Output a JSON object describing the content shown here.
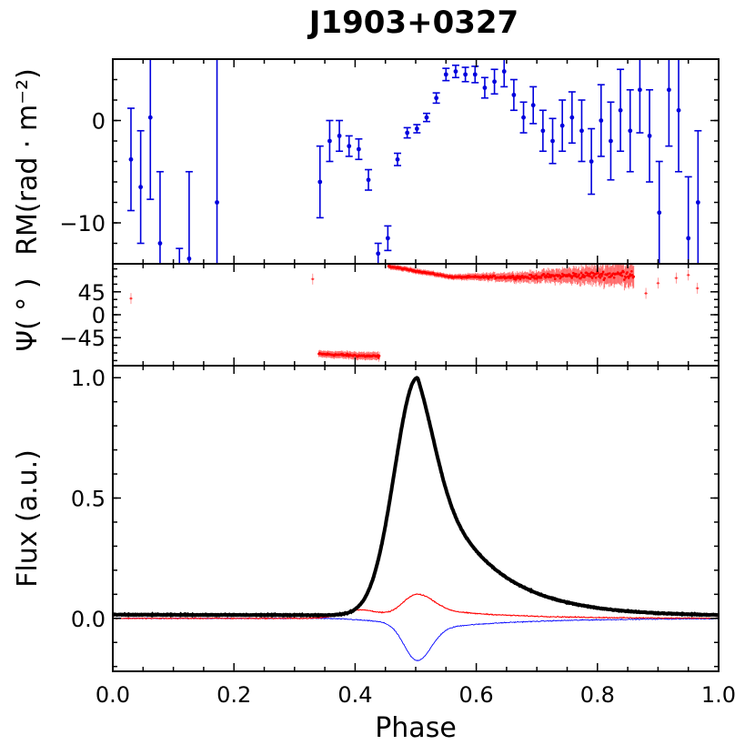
{
  "title": "J1903+0327",
  "colors": {
    "rm": "#0000dd",
    "pa": "#ff0000",
    "total": "#000000",
    "linear": "#ff0000",
    "circular": "#0000ff"
  },
  "chart_data": [
    {
      "id": "rm",
      "type": "scatter",
      "ylabel": "RM(rad · m⁻²)",
      "xlim": [
        0,
        1
      ],
      "ylim": [
        -14,
        6
      ],
      "ytick_values": [
        -10,
        0
      ],
      "ytick_labels": [
        "−10",
        "0"
      ],
      "points": [
        {
          "x": 0.03,
          "y": -3.8,
          "err": 5.0
        },
        {
          "x": 0.046,
          "y": -6.5,
          "err": 5.5
        },
        {
          "x": 0.062,
          "y": 0.3,
          "err": 8.0
        },
        {
          "x": 0.078,
          "y": -12.0,
          "err": 7.0
        },
        {
          "x": 0.11,
          "y": -15.0,
          "err": 2.5
        },
        {
          "x": 0.126,
          "y": -13.5,
          "err": 8.5
        },
        {
          "x": 0.172,
          "y": -8.0,
          "err": 20.0
        },
        {
          "x": 0.342,
          "y": -6.0,
          "err": 3.5
        },
        {
          "x": 0.358,
          "y": -2.0,
          "err": 2.0
        },
        {
          "x": 0.374,
          "y": -1.5,
          "err": 1.5
        },
        {
          "x": 0.39,
          "y": -2.5,
          "err": 1.0
        },
        {
          "x": 0.406,
          "y": -2.8,
          "err": 1.0
        },
        {
          "x": 0.422,
          "y": -5.8,
          "err": 1.0
        },
        {
          "x": 0.438,
          "y": -13.0,
          "err": 1.0
        },
        {
          "x": 0.454,
          "y": -11.5,
          "err": 1.2
        },
        {
          "x": 0.47,
          "y": -3.8,
          "err": 0.6
        },
        {
          "x": 0.486,
          "y": -1.2,
          "err": 0.5
        },
        {
          "x": 0.502,
          "y": -0.8,
          "err": 0.4
        },
        {
          "x": 0.518,
          "y": 0.3,
          "err": 0.4
        },
        {
          "x": 0.534,
          "y": 2.2,
          "err": 0.5
        },
        {
          "x": 0.55,
          "y": 4.5,
          "err": 0.6
        },
        {
          "x": 0.566,
          "y": 4.8,
          "err": 0.6
        },
        {
          "x": 0.582,
          "y": 4.5,
          "err": 0.7
        },
        {
          "x": 0.598,
          "y": 4.5,
          "err": 0.8
        },
        {
          "x": 0.614,
          "y": 3.2,
          "err": 1.0
        },
        {
          "x": 0.63,
          "y": 3.8,
          "err": 1.2
        },
        {
          "x": 0.646,
          "y": 4.8,
          "err": 1.5
        },
        {
          "x": 0.662,
          "y": 2.5,
          "err": 1.5
        },
        {
          "x": 0.678,
          "y": 0.3,
          "err": 1.5
        },
        {
          "x": 0.694,
          "y": 1.5,
          "err": 1.8
        },
        {
          "x": 0.71,
          "y": -1.0,
          "err": 2.0
        },
        {
          "x": 0.726,
          "y": -2.0,
          "err": 2.2
        },
        {
          "x": 0.742,
          "y": -0.5,
          "err": 2.5
        },
        {
          "x": 0.758,
          "y": 0.3,
          "err": 2.5
        },
        {
          "x": 0.774,
          "y": -1.0,
          "err": 3.0
        },
        {
          "x": 0.79,
          "y": -4.0,
          "err": 3.2
        },
        {
          "x": 0.806,
          "y": 0.0,
          "err": 3.5
        },
        {
          "x": 0.822,
          "y": -2.0,
          "err": 3.8
        },
        {
          "x": 0.838,
          "y": 1.0,
          "err": 4.0
        },
        {
          "x": 0.854,
          "y": -1.0,
          "err": 4.0
        },
        {
          "x": 0.87,
          "y": 3.0,
          "err": 4.2
        },
        {
          "x": 0.886,
          "y": -1.5,
          "err": 4.5
        },
        {
          "x": 0.902,
          "y": -9.0,
          "err": 5.0
        },
        {
          "x": 0.918,
          "y": 3.0,
          "err": 5.5
        },
        {
          "x": 0.934,
          "y": 1.0,
          "err": 6.0
        },
        {
          "x": 0.95,
          "y": -11.5,
          "err": 6.0
        },
        {
          "x": 0.966,
          "y": -8.0,
          "err": 7.0
        }
      ]
    },
    {
      "id": "pa",
      "type": "scatter",
      "ylabel": "Ψ( ° )",
      "xlim": [
        0,
        1
      ],
      "ylim": [
        -100,
        100
      ],
      "ytick_values": [
        -45,
        0,
        45
      ],
      "ytick_labels": [
        "−45",
        "0",
        "45"
      ],
      "segments": [
        {
          "x_start": 0.34,
          "x_end": 0.44,
          "y_start": -77,
          "y_end": -82,
          "scatter_start": 3,
          "scatter_end": 4
        },
        {
          "x_start": 0.455,
          "x_end": 0.56,
          "y_start": 95,
          "y_end": 74,
          "scatter_start": 2,
          "scatter_end": 2
        },
        {
          "x_start": 0.56,
          "x_end": 0.7,
          "y_start": 74,
          "y_end": 74,
          "scatter_start": 2,
          "scatter_end": 6
        },
        {
          "x_start": 0.7,
          "x_end": 0.86,
          "y_start": 75,
          "y_end": 80,
          "scatter_start": 6,
          "scatter_end": 14
        }
      ],
      "isolated": [
        {
          "x": 0.03,
          "y": 32
        },
        {
          "x": 0.33,
          "y": 70
        },
        {
          "x": 0.88,
          "y": 42
        },
        {
          "x": 0.9,
          "y": 62
        },
        {
          "x": 0.93,
          "y": 72
        },
        {
          "x": 0.95,
          "y": 78
        },
        {
          "x": 0.965,
          "y": 52
        }
      ]
    },
    {
      "id": "flux",
      "type": "line",
      "xlabel": "Phase",
      "ylabel": "Flux (a.u.)",
      "xlim": [
        0,
        1
      ],
      "ylim": [
        -0.22,
        1.05
      ],
      "xtick_values": [
        0,
        0.2,
        0.4,
        0.6,
        0.8,
        1.0
      ],
      "xtick_labels": [
        "0.0",
        "0.2",
        "0.4",
        "0.6",
        "0.8",
        "1.0"
      ],
      "ytick_values": [
        0,
        0.5,
        1.0
      ],
      "ytick_labels": [
        "0.0",
        "0.5",
        "1.0"
      ],
      "series": [
        {
          "name": "Total intensity",
          "color": "#000000",
          "peak_x": 0.503,
          "peak": 1.0,
          "rise_width": 0.038,
          "decay": 0.095,
          "baseline_start": 0.015,
          "baseline_end": 0.01
        },
        {
          "name": "Linear polarization",
          "color": "#ff0000",
          "peak_x": 0.503,
          "peak": 0.1,
          "secondary_x": 0.41,
          "secondary": 0.035
        },
        {
          "name": "Circular polarization",
          "color": "#0000ff",
          "peak_x": 0.503,
          "peak": -0.17
        }
      ]
    }
  ]
}
